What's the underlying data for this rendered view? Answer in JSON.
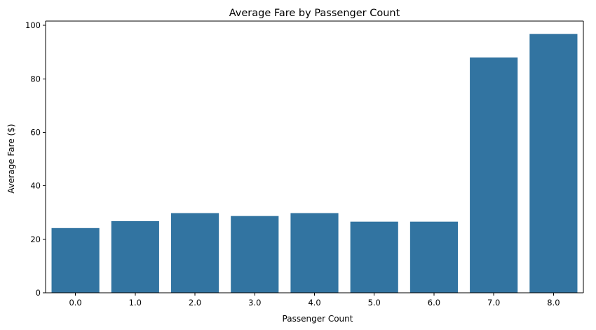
{
  "chart_data": {
    "type": "bar",
    "title": "Average Fare by Passenger Count",
    "xlabel": "Passenger Count",
    "ylabel": "Average Fare ($)",
    "categories": [
      "0.0",
      "1.0",
      "2.0",
      "3.0",
      "4.0",
      "5.0",
      "6.0",
      "7.0",
      "8.0"
    ],
    "values": [
      24.2,
      26.8,
      29.8,
      28.7,
      29.8,
      26.6,
      26.6,
      88.0,
      96.8
    ],
    "ylim": [
      0,
      101.6
    ],
    "yticks": [
      0,
      20,
      40,
      60,
      80,
      100
    ],
    "grid": false,
    "bar_color": "#3274a1"
  }
}
